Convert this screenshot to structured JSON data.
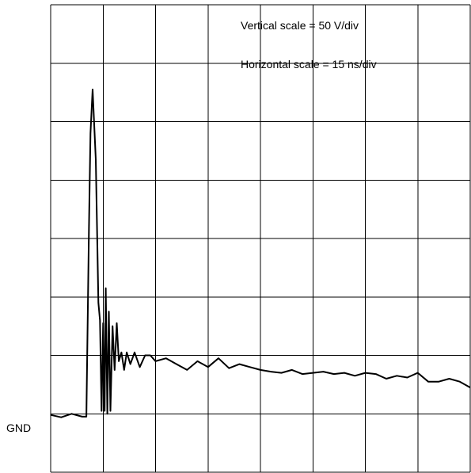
{
  "chart_data": {
    "type": "line",
    "title": "",
    "xlabel": "",
    "ylabel": "",
    "grid": true,
    "x_divisions": 8,
    "y_divisions": 8,
    "xlim": [
      0,
      8
    ],
    "ylim": [
      -1,
      7
    ],
    "ground_label": "GND",
    "annotations": [
      "Vertical scale = 50 V/div",
      "Horizontal scale = 15 ns/div"
    ],
    "units": {
      "x": "div",
      "y": "div"
    },
    "series": [
      {
        "color": "#000000",
        "x": [
          0.0,
          0.2,
          0.4,
          0.6,
          0.68,
          0.73,
          0.76,
          0.8,
          0.86,
          0.91,
          0.94,
          0.97,
          1.0,
          1.03,
          1.05,
          1.08,
          1.11,
          1.14,
          1.18,
          1.22,
          1.26,
          1.3,
          1.35,
          1.4,
          1.45,
          1.52,
          1.6,
          1.7,
          1.8,
          1.9,
          2.0,
          2.2,
          2.4,
          2.6,
          2.8,
          3.0,
          3.2,
          3.4,
          3.6,
          3.8,
          4.0,
          4.2,
          4.4,
          4.6,
          4.8,
          5.0,
          5.2,
          5.4,
          5.6,
          5.8,
          6.0,
          6.2,
          6.4,
          6.6,
          6.8,
          7.0,
          7.2,
          7.4,
          7.6,
          7.8,
          8.0
        ],
        "y": [
          -0.02,
          -0.06,
          0.0,
          -0.05,
          -0.05,
          3.2,
          4.8,
          5.55,
          4.35,
          1.9,
          1.6,
          0.05,
          1.55,
          0.05,
          2.15,
          0.0,
          1.75,
          0.05,
          1.5,
          0.75,
          1.55,
          0.9,
          1.05,
          0.75,
          1.05,
          0.85,
          1.05,
          0.8,
          1.0,
          1.0,
          0.9,
          0.95,
          0.85,
          0.75,
          0.9,
          0.8,
          0.95,
          0.78,
          0.85,
          0.8,
          0.75,
          0.72,
          0.7,
          0.75,
          0.68,
          0.7,
          0.72,
          0.68,
          0.7,
          0.65,
          0.7,
          0.68,
          0.6,
          0.65,
          0.62,
          0.7,
          0.55,
          0.55,
          0.6,
          0.55,
          0.45
        ]
      }
    ]
  }
}
